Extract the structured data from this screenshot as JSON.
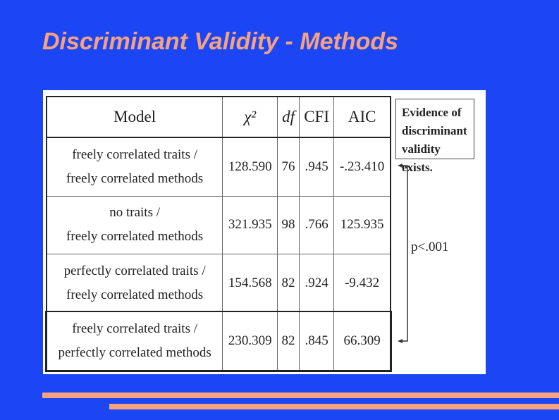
{
  "title": "Discriminant Validity - Methods",
  "table": {
    "header": [
      "Model",
      "χ²",
      "df",
      "CFI",
      "AIC"
    ],
    "rows": [
      [
        [
          "freely correlated traits /",
          "freely correlated methods"
        ],
        "128.590",
        "76",
        ".945",
        "-.23.410"
      ],
      [
        [
          "no traits /",
          "freely correlated methods"
        ],
        "321.935",
        "98",
        ".766",
        "125.935"
      ],
      [
        [
          "perfectly correlated traits /",
          "freely correlated methods"
        ],
        "154.568",
        "82",
        ".924",
        "-9.432"
      ],
      [
        [
          "freely correlated traits /",
          "perfectly correlated methods"
        ],
        "230.309",
        "82",
        ".845",
        "66.309"
      ]
    ]
  },
  "callout": [
    "Evidence of",
    "discriminant",
    "validity exists."
  ],
  "significance": "p<.001"
}
